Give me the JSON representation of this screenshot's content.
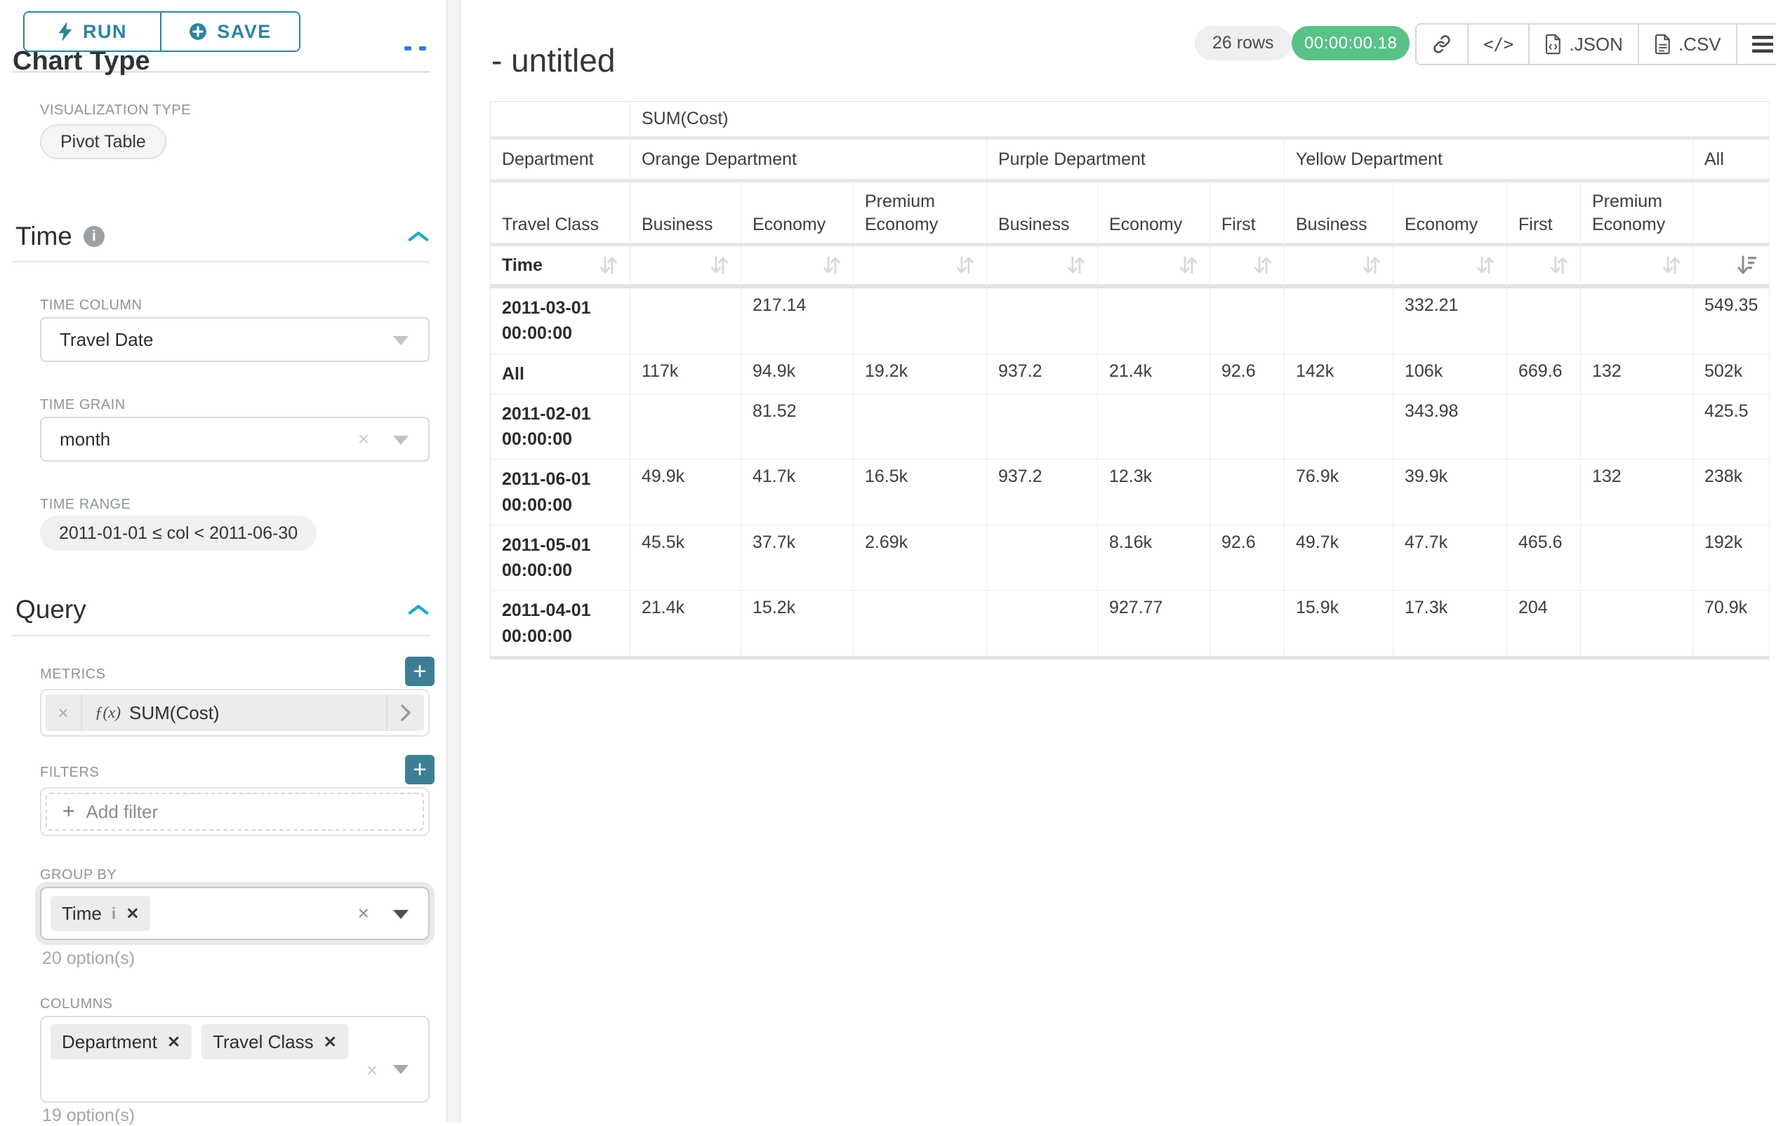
{
  "colors": {
    "accent_teal": "#2c83a0",
    "add_button_teal": "#3c7f95",
    "section_chevron_blue": "#20a7c9",
    "timer_green": "#5ac189",
    "pill_gray": "#f0f0f0",
    "table_stripe": "#f8f8f8"
  },
  "icons": [
    "bolt-icon",
    "plus-circle-icon",
    "info-icon",
    "chevron-up-icon",
    "caret-down-icon",
    "clear-icon",
    "function-icon",
    "chevron-right-icon",
    "plus-icon",
    "close-icon",
    "link-icon",
    "code-icon",
    "file-json-icon",
    "file-csv-icon",
    "menu-icon",
    "sort-icon",
    "sort-descending-icon"
  ],
  "sidebar": {
    "chart_type_heading": "Chart Type",
    "run_label": "RUN",
    "save_label": "SAVE",
    "visualization_type_label": "VISUALIZATION TYPE",
    "visualization_type_value": "Pivot Table",
    "time_section": {
      "title": "Time",
      "time_column_label": "TIME COLUMN",
      "time_column_value": "Travel Date",
      "time_grain_label": "TIME GRAIN",
      "time_grain_value": "month",
      "time_range_label": "TIME RANGE",
      "time_range_value": "2011-01-01 ≤ col < 2011-06-30"
    },
    "query_section": {
      "title": "Query",
      "metrics_label": "METRICS",
      "metric_prefix": "ƒ(x)",
      "metric_value": "SUM(Cost)",
      "filters_label": "FILTERS",
      "add_filter_label": "Add filter",
      "group_by_label": "GROUP BY",
      "group_by_tags": [
        "Time"
      ],
      "group_by_options_hint": "20 option(s)",
      "columns_label": "COLUMNS",
      "columns_tags": [
        "Department",
        "Travel Class"
      ],
      "columns_options_hint": "19 option(s)"
    }
  },
  "header": {
    "title": "- untitled",
    "row_count": "26 rows",
    "timer": "00:00:00.18",
    "export_json_label": ".JSON",
    "export_csv_label": ".CSV"
  },
  "pivot_table": {
    "metric_header": "SUM(Cost)",
    "row_dim_labels": [
      "Department",
      "Travel Class",
      "Time"
    ],
    "col_groups": [
      {
        "label": "Orange Department",
        "cols": [
          "Business",
          "Economy",
          "Premium Economy"
        ]
      },
      {
        "label": "Purple Department",
        "cols": [
          "Business",
          "Economy",
          "First"
        ]
      },
      {
        "label": "Yellow Department",
        "cols": [
          "Business",
          "Economy",
          "First",
          "Premium Economy"
        ]
      },
      {
        "label": "All",
        "cols": [
          ""
        ]
      }
    ],
    "rows": [
      {
        "label": "2011-03-01 00:00:00",
        "values": [
          "",
          "217.14",
          "",
          "",
          "",
          "",
          "",
          "332.21",
          "",
          "",
          "549.35"
        ]
      },
      {
        "label": "All",
        "values": [
          "117k",
          "94.9k",
          "19.2k",
          "937.2",
          "21.4k",
          "92.6",
          "142k",
          "106k",
          "669.6",
          "132",
          "502k"
        ]
      },
      {
        "label": "2011-02-01 00:00:00",
        "values": [
          "",
          "81.52",
          "",
          "",
          "",
          "",
          "",
          "343.98",
          "",
          "",
          "425.5"
        ]
      },
      {
        "label": "2011-06-01 00:00:00",
        "values": [
          "49.9k",
          "41.7k",
          "16.5k",
          "937.2",
          "12.3k",
          "",
          "76.9k",
          "39.9k",
          "",
          "132",
          "238k"
        ]
      },
      {
        "label": "2011-05-01 00:00:00",
        "values": [
          "45.5k",
          "37.7k",
          "2.69k",
          "",
          "8.16k",
          "92.6",
          "49.7k",
          "47.7k",
          "465.6",
          "",
          "192k"
        ]
      },
      {
        "label": "2011-04-01 00:00:00",
        "values": [
          "21.4k",
          "15.2k",
          "",
          "",
          "927.77",
          "",
          "15.9k",
          "17.3k",
          "204",
          "",
          "70.9k"
        ]
      }
    ]
  }
}
